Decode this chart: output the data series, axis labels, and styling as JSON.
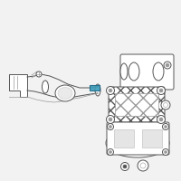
{
  "bg_color": "#f2f2f2",
  "line_color": "#999999",
  "highlight_color": "#3d9db8",
  "dark_line": "#555555",
  "fig_bg": "#f2f2f2",
  "white": "#ffffff",
  "gray": "#cccccc"
}
